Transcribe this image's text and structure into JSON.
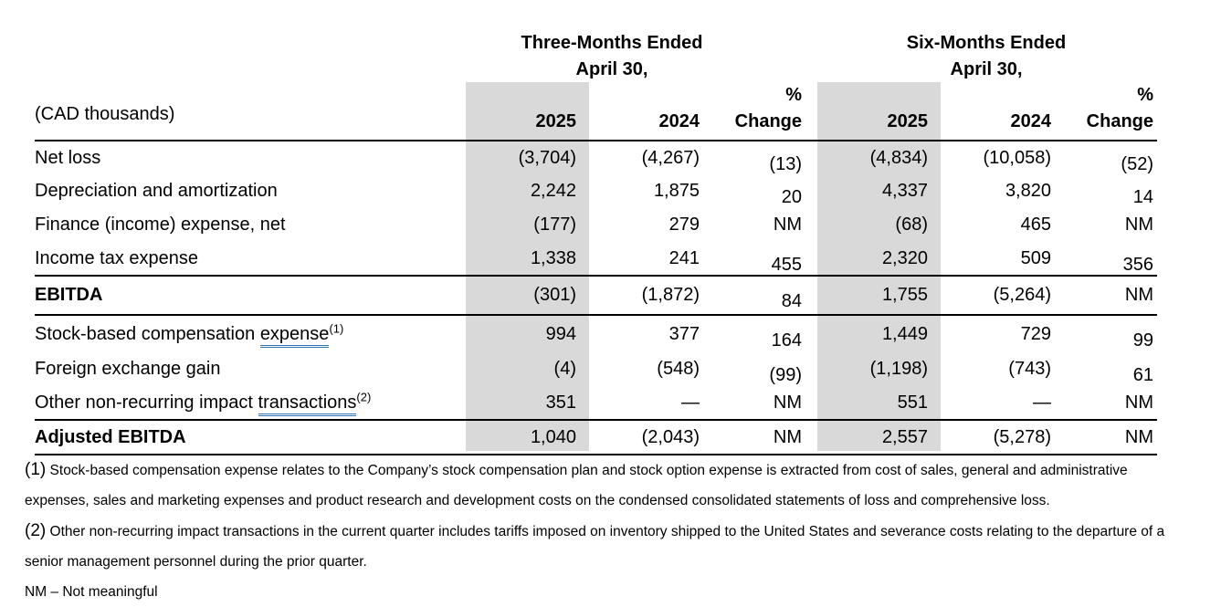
{
  "colors": {
    "shade": "#d9d9d9",
    "underline_blue": "#2e75b6"
  },
  "headers": {
    "three_months": {
      "line1": "Three-Months Ended",
      "line2": "April 30,"
    },
    "six_months": {
      "line1": "Six-Months Ended",
      "line2": "April 30,"
    }
  },
  "table": {
    "unit_label": "(CAD thousands)",
    "col_headers": [
      "2025",
      "2024",
      "%\nChange",
      "2025",
      "2024",
      "%\nChange"
    ],
    "rows": [
      {
        "label": "Net loss",
        "values": [
          "(3,704)",
          "(4,267)",
          "(13)",
          "(4,834)",
          "(10,058)",
          "(52)"
        ]
      },
      {
        "label": "Depreciation and amortization",
        "values": [
          "2,242",
          "1,875",
          "20",
          "4,337",
          "3,820",
          "14"
        ]
      },
      {
        "label": "Finance (income) expense, net",
        "values": [
          "(177)",
          "279",
          "NM",
          "(68)",
          "465",
          "NM"
        ]
      },
      {
        "label": "Income tax expense",
        "rule_below": true,
        "values": [
          "1,338",
          "241",
          "455",
          "2,320",
          "509",
          "356"
        ]
      },
      {
        "label": "EBITDA",
        "bold": true,
        "rule_below": true,
        "values": [
          "(301)",
          "(1,872)",
          "84",
          "1,755",
          "(5,264)",
          "NM"
        ]
      },
      {
        "label_parts": {
          "prefix": "Stock-based compensation ",
          "underlined": "expense",
          "sup": "(1)"
        },
        "values": [
          "994",
          "377",
          "164",
          "1,449",
          "729",
          "99"
        ]
      },
      {
        "label": "Foreign exchange gain",
        "values": [
          "(4)",
          "(548)",
          "(99)",
          "(1,198)",
          "(743)",
          "61"
        ]
      },
      {
        "label_parts": {
          "prefix": "Other non-recurring impact ",
          "underlined": "transactions",
          "sup": "(2)"
        },
        "rule_below": true,
        "values": [
          "351",
          "—",
          "NM",
          "551",
          "—",
          "NM"
        ]
      },
      {
        "label": "Adjusted EBITDA",
        "bold": true,
        "rule_below": true,
        "values": [
          "1,040",
          "(2,043)",
          "NM",
          "2,557",
          "(5,278)",
          "NM"
        ]
      }
    ],
    "nm_value": "NM"
  },
  "footnotes": [
    {
      "marker": "(1)",
      "text": "Stock-based compensation expense relates to the Company’s stock compensation plan and stock option expense is extracted from cost of sales, general and administrative expenses, sales and marketing expenses and product research and development costs on the condensed consolidated statements of loss and comprehensive loss."
    },
    {
      "marker": "(2)",
      "text": "Other non-recurring impact transactions in the current quarter includes tariffs imposed on inventory shipped to the United States and severance costs relating to the departure of a senior management personnel during the prior quarter."
    }
  ],
  "nm_note": "NM – Not meaningful"
}
